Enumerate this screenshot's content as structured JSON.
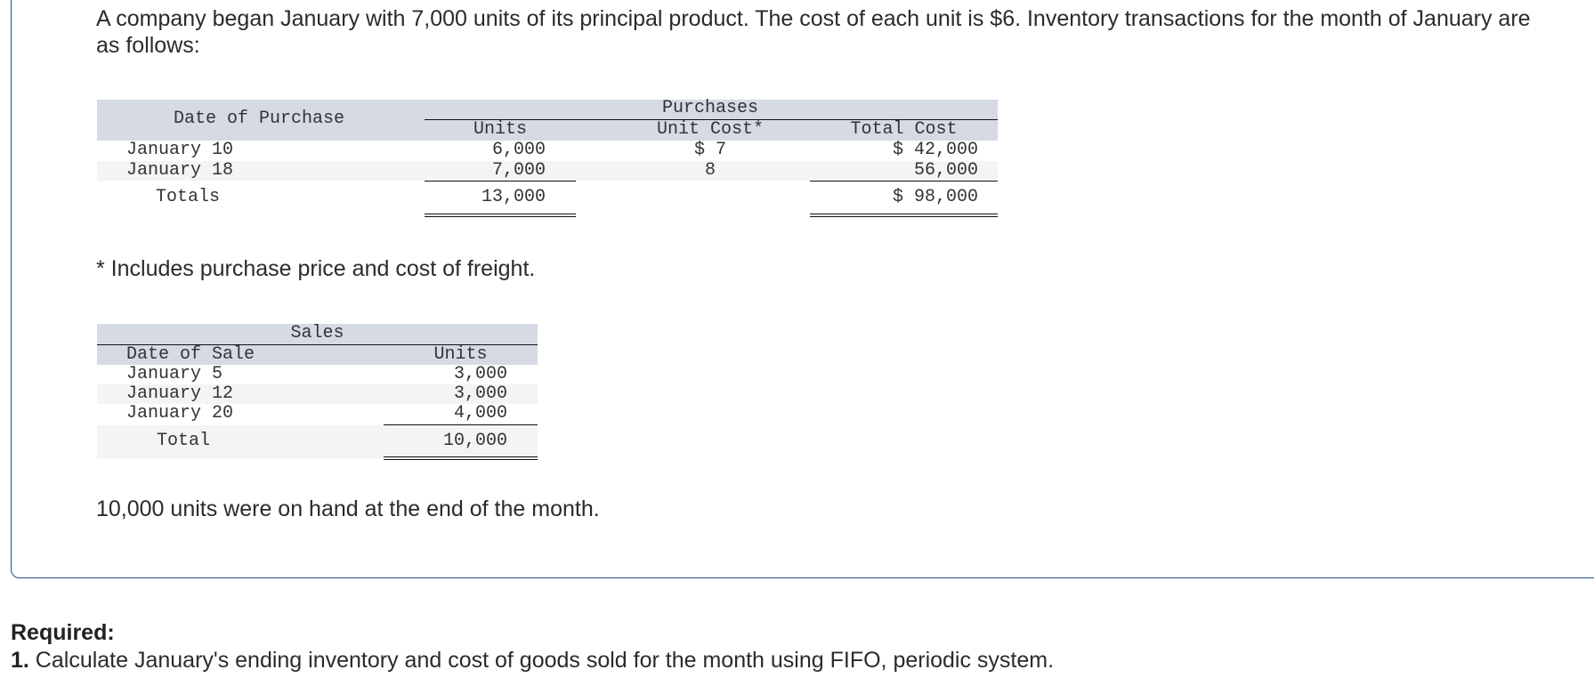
{
  "intro": "A company began January with 7,000 units of its principal product. The cost of each unit is $6. Inventory transactions for the month of January are as follows:",
  "purchases_table": {
    "group_header": "Purchases",
    "date_header": "Date of Purchase",
    "columns": [
      "Units",
      "Unit Cost*",
      "Total Cost"
    ],
    "rows": [
      {
        "date": "January 10",
        "units": "6,000",
        "unit_cost": "$ 7",
        "total_cost": "$ 42,000"
      },
      {
        "date": "January 18",
        "units": "7,000",
        "unit_cost": "8",
        "total_cost": "56,000"
      }
    ],
    "totals": {
      "label": "Totals",
      "units": "13,000",
      "total_cost": "$ 98,000"
    }
  },
  "footnote": "* Includes purchase price and cost of freight.",
  "sales_table": {
    "group_header": "Sales",
    "date_header": "Date of Sale",
    "units_header": "Units",
    "rows": [
      {
        "date": "January 5",
        "units": "3,000"
      },
      {
        "date": "January 12",
        "units": "3,000"
      },
      {
        "date": "January 20",
        "units": "4,000"
      }
    ],
    "total": {
      "label": "Total",
      "units": "10,000"
    }
  },
  "on_hand_note": "10,000 units were on hand at the end of the month.",
  "required": {
    "heading": "Required:",
    "item_number": "1.",
    "item_text": " Calculate January's ending inventory and cost of goods sold for the month using FIFO, periodic system."
  }
}
